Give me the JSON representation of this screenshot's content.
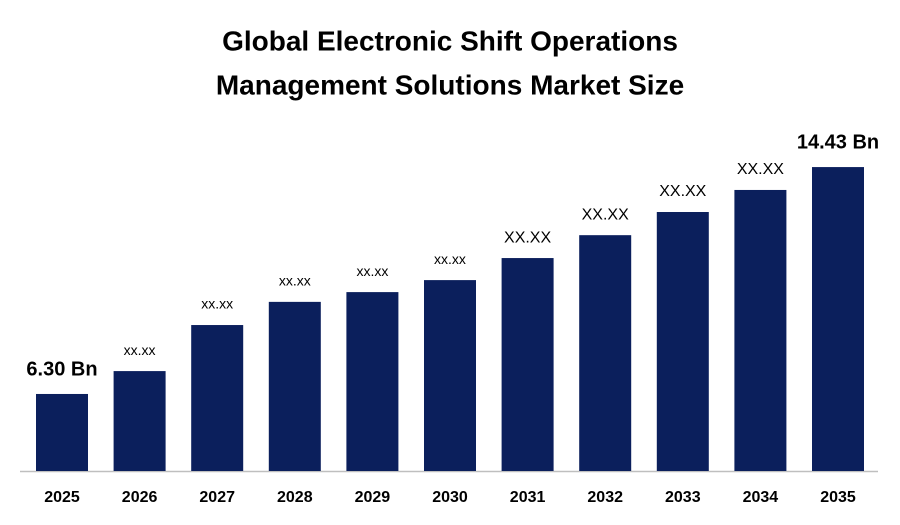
{
  "chart_data": {
    "type": "bar",
    "title": [
      "Global Electronic Shift Operations",
      "Management Solutions Market Size"
    ],
    "categories": [
      "2025",
      "2026",
      "2027",
      "2028",
      "2029",
      "2030",
      "2031",
      "2032",
      "2033",
      "2034",
      "2035"
    ],
    "values": [
      6.3,
      7.12,
      8.77,
      9.6,
      9.95,
      10.38,
      11.17,
      11.99,
      12.82,
      13.61,
      14.43
    ],
    "value_labels": [
      "6.30 Bn",
      "xx.xx",
      "xx.xx",
      "xx.xx",
      "xx.xx",
      "xx.xx",
      "XX.XX",
      "XX.XX",
      "XX.XX",
      "XX.XX",
      "14.43 Bn"
    ],
    "color": "#0b1f5c",
    "ylim": [
      3.54,
      15.4
    ]
  }
}
